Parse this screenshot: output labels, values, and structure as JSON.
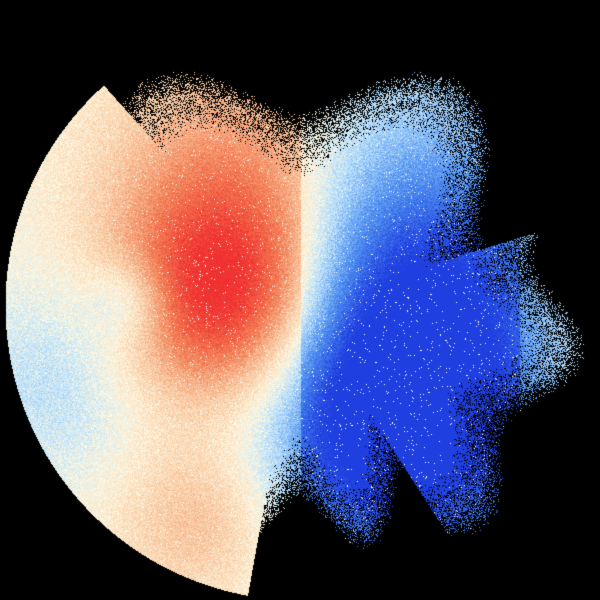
{
  "colors": {
    "background": "#000000",
    "inbound_strong": "#1f3fe0",
    "inbound": "#4f8ff0",
    "inbound_light": "#b8e0fb",
    "neutral": "#fff8e0",
    "outbound_light": "#f8c8a0",
    "outbound": "#f27850",
    "outbound_strong": "#f03030"
  }
}
